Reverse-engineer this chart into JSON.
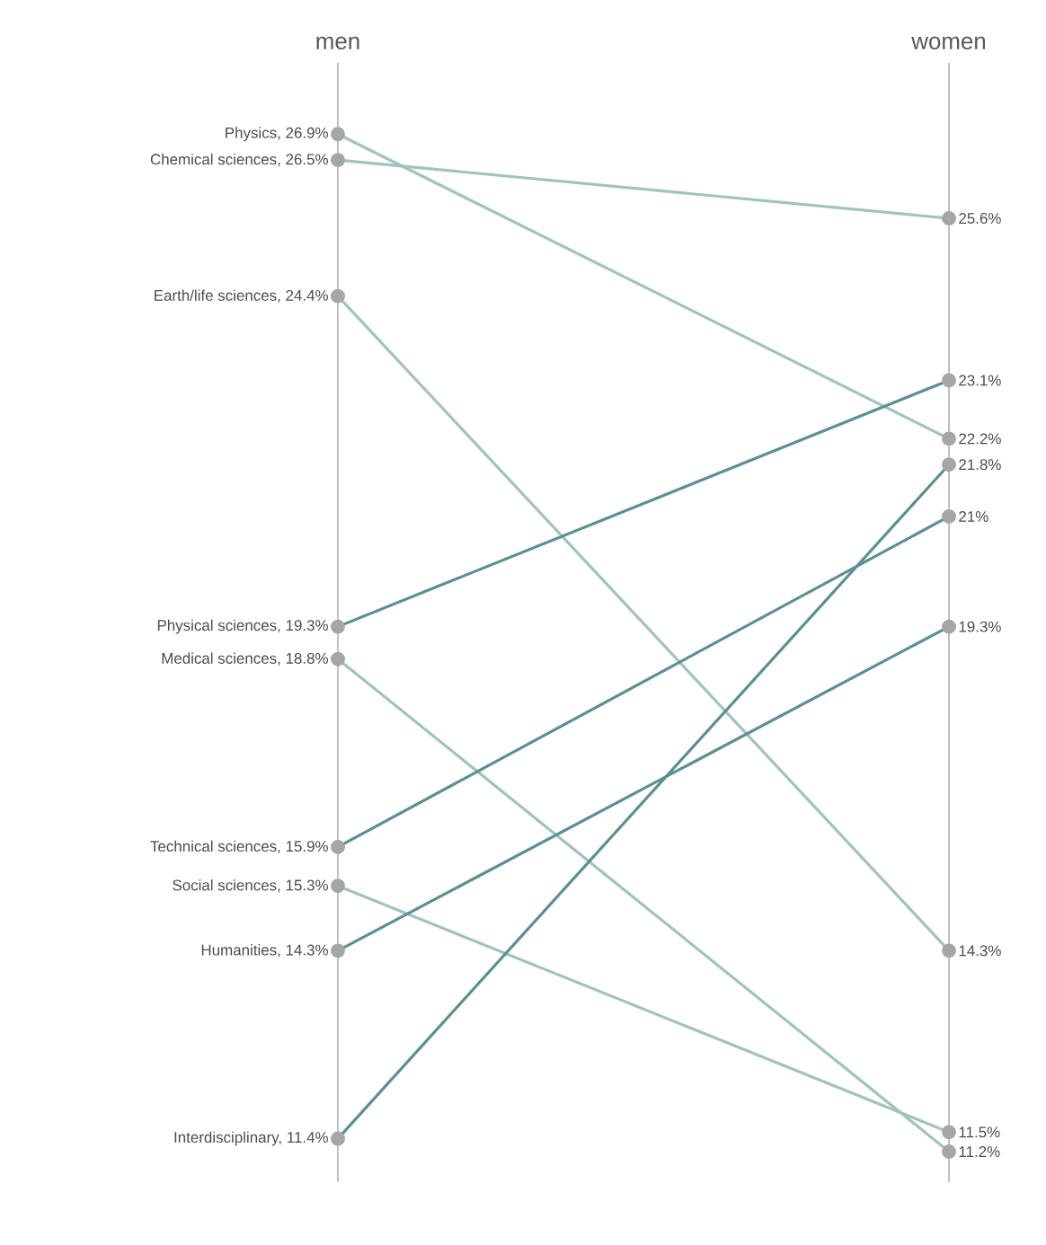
{
  "chart_data": {
    "type": "line",
    "categories": [
      "men",
      "women"
    ],
    "grid": "x",
    "marker": "circle",
    "data_labels": true,
    "series": [
      {
        "color": "#9fc3bd",
        "values": [
          26.9,
          22.2
        ],
        "value_labels": [
          "Physics, 26.9%",
          "22.2%"
        ]
      },
      {
        "color": "#9fc3bd",
        "values": [
          26.5,
          25.6
        ],
        "value_labels": [
          "Chemical sciences, 26.5%",
          "25.6%"
        ]
      },
      {
        "color": "#9fc3bd",
        "values": [
          24.4,
          14.3
        ],
        "value_labels": [
          "Earth/life sciences, 24.4%",
          "14.3%"
        ]
      },
      {
        "color": "#5a8f95",
        "values": [
          19.3,
          23.1
        ],
        "value_labels": [
          "Physical sciences, 19.3%",
          "23.1%"
        ]
      },
      {
        "color": "#9fc3bd",
        "values": [
          18.8,
          11.2
        ],
        "value_labels": [
          "Medical sciences, 18.8%",
          "11.2%"
        ]
      },
      {
        "color": "#5a8f95",
        "values": [
          15.9,
          21
        ],
        "value_labels": [
          "Technical sciences, 15.9%",
          "21%"
        ]
      },
      {
        "color": "#9fc3bd",
        "values": [
          15.3,
          11.5
        ],
        "value_labels": [
          "Social sciences, 15.3%",
          "11.5%"
        ]
      },
      {
        "color": "#5a8f95",
        "values": [
          14.3,
          19.3
        ],
        "value_labels": [
          "Humanities, 14.3%",
          "19.3%"
        ]
      },
      {
        "color": "#5a8f95",
        "values": [
          11.4,
          21.8
        ],
        "value_labels": [
          "Interdisciplinary, 11.4%",
          "21.8%"
        ]
      }
    ]
  }
}
